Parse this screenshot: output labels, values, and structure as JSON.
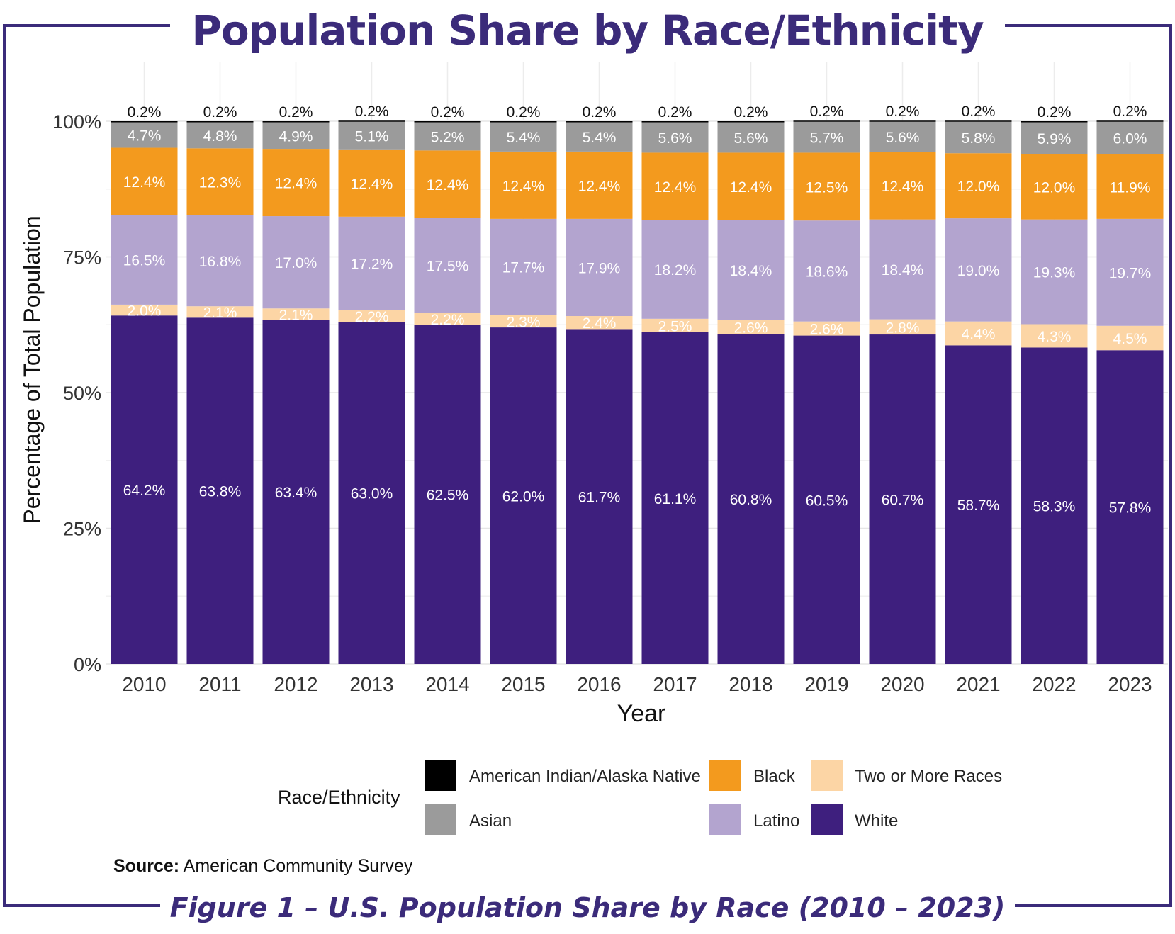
{
  "title": "Population Share by Race/Ethnicity",
  "caption": "Figure 1 – U.S. Population Share by Race (2010 – 2023)",
  "source": {
    "label": "Source:",
    "text": "American Community Survey"
  },
  "legend": {
    "title": "Race/Ethnicity",
    "items": [
      {
        "label": "American Indian/Alaska Native",
        "color": "#000000"
      },
      {
        "label": "Black",
        "color": "#f39a1e"
      },
      {
        "label": "Two or More Races",
        "color": "#fcd5a5"
      },
      {
        "label": "Asian",
        "color": "#9b9b9b"
      },
      {
        "label": "Latino",
        "color": "#b3a4cf"
      },
      {
        "label": "White",
        "color": "#3e1f7e"
      }
    ]
  },
  "chart_data": {
    "type": "bar",
    "stacked": true,
    "xlabel": "Year",
    "ylabel": "Percentage of Total Population",
    "ylim": [
      0,
      100
    ],
    "yticks": [
      "0%",
      "25%",
      "50%",
      "75%",
      "100%"
    ],
    "categories": [
      "2010",
      "2011",
      "2012",
      "2013",
      "2014",
      "2015",
      "2016",
      "2017",
      "2018",
      "2019",
      "2020",
      "2021",
      "2022",
      "2023"
    ],
    "series": [
      {
        "name": "White",
        "color": "#3e1f7e",
        "label_color": "#ffffff",
        "values": [
          64.2,
          63.8,
          63.4,
          63.0,
          62.5,
          62.0,
          61.7,
          61.1,
          60.8,
          60.5,
          60.7,
          58.7,
          58.3,
          57.8
        ]
      },
      {
        "name": "Two or More Races",
        "color": "#fcd5a5",
        "label_color": "#ffffff",
        "values": [
          2.0,
          2.1,
          2.1,
          2.2,
          2.2,
          2.3,
          2.4,
          2.5,
          2.6,
          2.6,
          2.8,
          4.4,
          4.3,
          4.5
        ]
      },
      {
        "name": "Latino",
        "color": "#b3a4cf",
        "label_color": "#ffffff",
        "values": [
          16.5,
          16.8,
          17.0,
          17.2,
          17.5,
          17.7,
          17.9,
          18.2,
          18.4,
          18.6,
          18.4,
          19.0,
          19.3,
          19.7
        ]
      },
      {
        "name": "Black",
        "color": "#f39a1e",
        "label_color": "#ffffff",
        "values": [
          12.4,
          12.3,
          12.4,
          12.4,
          12.4,
          12.4,
          12.4,
          12.4,
          12.4,
          12.5,
          12.4,
          12.0,
          12.0,
          11.9
        ]
      },
      {
        "name": "Asian",
        "color": "#9b9b9b",
        "label_color": "#ffffff",
        "values": [
          4.7,
          4.8,
          4.9,
          5.1,
          5.2,
          5.4,
          5.4,
          5.6,
          5.6,
          5.7,
          5.6,
          5.8,
          5.9,
          6.0
        ]
      },
      {
        "name": "American Indian/Alaska Native",
        "color": "#000000",
        "label_color": "#111111",
        "values": [
          0.2,
          0.2,
          0.2,
          0.2,
          0.2,
          0.2,
          0.2,
          0.2,
          0.2,
          0.2,
          0.2,
          0.2,
          0.2,
          0.2
        ]
      }
    ],
    "grid": true,
    "legend_position": "bottom"
  }
}
